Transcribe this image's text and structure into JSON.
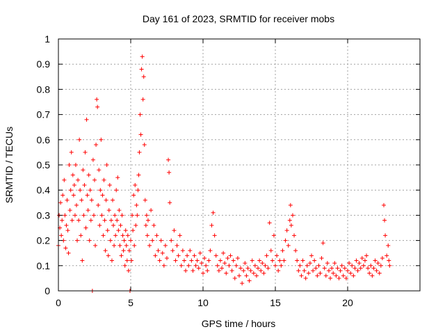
{
  "chart_data": {
    "type": "scatter",
    "title": "Day 161 of 2023, SRMTID for receiver mobs",
    "xlabel": "GPS time / hours",
    "ylabel": "SRMTID / TECUs",
    "xlim": [
      0,
      25
    ],
    "ylim": [
      0,
      1
    ],
    "xticks": [
      0,
      5,
      10,
      15,
      20
    ],
    "xtick_labels": [
      "0",
      "5",
      "10",
      "15",
      "20"
    ],
    "yticks": [
      0,
      0.1,
      0.2,
      0.3,
      0.4,
      0.5,
      0.6,
      0.7,
      0.8,
      0.9,
      1
    ],
    "ytick_labels": [
      "0",
      "0.1",
      "0.2",
      "0.3",
      "0.4",
      "0.5",
      "0.6",
      "0.7",
      "0.8",
      "0.9",
      "1"
    ],
    "grid": true,
    "marker": "+",
    "color": "#ff0000",
    "series": [
      {
        "name": "mobs",
        "points": [
          [
            0.0,
            0.18
          ],
          [
            0.05,
            0.3
          ],
          [
            0.1,
            0.25
          ],
          [
            0.15,
            0.35
          ],
          [
            0.2,
            0.22
          ],
          [
            0.25,
            0.28
          ],
          [
            0.3,
            0.38
          ],
          [
            0.35,
            0.2
          ],
          [
            0.4,
            0.44
          ],
          [
            0.45,
            0.3
          ],
          [
            0.5,
            0.17
          ],
          [
            0.55,
            0.26
          ],
          [
            0.6,
            0.36
          ],
          [
            0.65,
            0.24
          ],
          [
            0.7,
            0.15
          ],
          [
            0.75,
            0.5
          ],
          [
            0.8,
            0.32
          ],
          [
            0.85,
            0.4
          ],
          [
            0.9,
            0.55
          ],
          [
            0.95,
            0.28
          ],
          [
            1.0,
            0.46
          ],
          [
            1.05,
            0.38
          ],
          [
            1.1,
            0.42
          ],
          [
            1.15,
            0.3
          ],
          [
            1.2,
            0.5
          ],
          [
            1.25,
            0.34
          ],
          [
            1.3,
            0.2
          ],
          [
            1.35,
            0.44
          ],
          [
            1.4,
            0.28
          ],
          [
            1.45,
            0.6
          ],
          [
            1.5,
            0.4
          ],
          [
            1.55,
            0.22
          ],
          [
            1.6,
            0.36
          ],
          [
            1.65,
            0.12
          ],
          [
            1.7,
            0.48
          ],
          [
            1.75,
            0.3
          ],
          [
            1.8,
            0.42
          ],
          [
            1.85,
            0.55
          ],
          [
            1.9,
            0.25
          ],
          [
            1.95,
            0.68
          ],
          [
            2.0,
            0.38
          ],
          [
            2.05,
            0.32
          ],
          [
            2.1,
            0.46
          ],
          [
            2.15,
            0.2
          ],
          [
            2.2,
            0.4
          ],
          [
            2.25,
            0.28
          ],
          [
            2.3,
            0.36
          ],
          [
            2.35,
            0.0
          ],
          [
            2.4,
            0.52
          ],
          [
            2.45,
            0.3
          ],
          [
            2.5,
            0.44
          ],
          [
            2.55,
            0.18
          ],
          [
            2.6,
            0.58
          ],
          [
            2.65,
            0.76
          ],
          [
            2.7,
            0.73
          ],
          [
            2.75,
            0.34
          ],
          [
            2.8,
            0.48
          ],
          [
            2.85,
            0.26
          ],
          [
            2.9,
            0.4
          ],
          [
            2.95,
            0.6
          ],
          [
            3.0,
            0.3
          ],
          [
            3.05,
            0.38
          ],
          [
            3.1,
            0.22
          ],
          [
            3.15,
            0.44
          ],
          [
            3.2,
            0.28
          ],
          [
            3.25,
            0.16
          ],
          [
            3.3,
            0.36
          ],
          [
            3.35,
            0.5
          ],
          [
            3.4,
            0.24
          ],
          [
            3.45,
            0.14
          ],
          [
            3.5,
            0.32
          ],
          [
            3.55,
            0.42
          ],
          [
            3.6,
            0.2
          ],
          [
            3.65,
            0.28
          ],
          [
            3.7,
            0.12
          ],
          [
            3.75,
            0.36
          ],
          [
            3.8,
            0.26
          ],
          [
            3.85,
            0.18
          ],
          [
            3.9,
            0.3
          ],
          [
            3.95,
            0.22
          ],
          [
            4.0,
            0.4
          ],
          [
            4.05,
            0.28
          ],
          [
            4.1,
            0.45
          ],
          [
            4.15,
            0.24
          ],
          [
            4.2,
            0.32
          ],
          [
            4.25,
            0.18
          ],
          [
            4.3,
            0.26
          ],
          [
            4.35,
            0.14
          ],
          [
            4.4,
            0.3
          ],
          [
            4.45,
            0.22
          ],
          [
            4.5,
            0.16
          ],
          [
            4.55,
            0.2
          ],
          [
            4.6,
            0.1
          ],
          [
            4.65,
            0.24
          ],
          [
            4.7,
            0.18
          ],
          [
            4.75,
            0.12
          ],
          [
            4.8,
            0.22
          ],
          [
            4.85,
            0.08
          ],
          [
            4.9,
            0.16
          ],
          [
            4.95,
            0.0
          ],
          [
            5.0,
            0.2
          ],
          [
            5.05,
            0.12
          ],
          [
            5.1,
            0.3
          ],
          [
            5.15,
            0.24
          ],
          [
            5.2,
            0.38
          ],
          [
            5.25,
            0.18
          ],
          [
            5.3,
            0.42
          ],
          [
            5.35,
            0.26
          ],
          [
            5.4,
            0.34
          ],
          [
            5.45,
            0.3
          ],
          [
            5.5,
            0.4
          ],
          [
            5.55,
            0.46
          ],
          [
            5.6,
            0.55
          ],
          [
            5.65,
            0.7
          ],
          [
            5.7,
            0.62
          ],
          [
            5.75,
            0.88
          ],
          [
            5.8,
            0.93
          ],
          [
            5.85,
            0.76
          ],
          [
            5.9,
            0.85
          ],
          [
            5.95,
            0.58
          ],
          [
            6.0,
            0.36
          ],
          [
            6.05,
            0.26
          ],
          [
            6.1,
            0.3
          ],
          [
            6.15,
            0.22
          ],
          [
            6.2,
            0.28
          ],
          [
            6.3,
            0.18
          ],
          [
            6.4,
            0.32
          ],
          [
            6.5,
            0.2
          ],
          [
            6.6,
            0.26
          ],
          [
            6.7,
            0.14
          ],
          [
            6.8,
            0.22
          ],
          [
            6.9,
            0.16
          ],
          [
            7.0,
            0.12
          ],
          [
            7.1,
            0.2
          ],
          [
            7.2,
            0.15
          ],
          [
            7.3,
            0.1
          ],
          [
            7.4,
            0.18
          ],
          [
            7.5,
            0.13
          ],
          [
            7.6,
            0.52
          ],
          [
            7.65,
            0.47
          ],
          [
            7.7,
            0.35
          ],
          [
            7.8,
            0.2
          ],
          [
            7.9,
            0.16
          ],
          [
            8.0,
            0.24
          ],
          [
            8.1,
            0.12
          ],
          [
            8.2,
            0.18
          ],
          [
            8.3,
            0.14
          ],
          [
            8.4,
            0.22
          ],
          [
            8.5,
            0.1
          ],
          [
            8.6,
            0.16
          ],
          [
            8.7,
            0.12
          ],
          [
            8.8,
            0.08
          ],
          [
            8.9,
            0.14
          ],
          [
            9.0,
            0.1
          ],
          [
            9.1,
            0.16
          ],
          [
            9.2,
            0.12
          ],
          [
            9.3,
            0.08
          ],
          [
            9.4,
            0.14
          ],
          [
            9.5,
            0.1
          ],
          [
            9.6,
            0.12
          ],
          [
            9.7,
            0.09
          ],
          [
            9.8,
            0.15
          ],
          [
            9.9,
            0.11
          ],
          [
            10.0,
            0.07
          ],
          [
            10.1,
            0.13
          ],
          [
            10.2,
            0.1
          ],
          [
            10.3,
            0.08
          ],
          [
            10.4,
            0.12
          ],
          [
            10.5,
            0.16
          ],
          [
            10.6,
            0.26
          ],
          [
            10.7,
            0.31
          ],
          [
            10.8,
            0.22
          ],
          [
            10.9,
            0.14
          ],
          [
            11.0,
            0.1
          ],
          [
            11.1,
            0.08
          ],
          [
            11.2,
            0.12
          ],
          [
            11.3,
            0.09
          ],
          [
            11.4,
            0.15
          ],
          [
            11.5,
            0.11
          ],
          [
            11.6,
            0.07
          ],
          [
            11.7,
            0.13
          ],
          [
            11.8,
            0.1
          ],
          [
            11.9,
            0.14
          ],
          [
            12.0,
            0.08
          ],
          [
            12.1,
            0.12
          ],
          [
            12.2,
            0.05
          ],
          [
            12.3,
            0.1
          ],
          [
            12.4,
            0.13
          ],
          [
            12.5,
            0.06
          ],
          [
            12.6,
            0.09
          ],
          [
            12.7,
            0.03
          ],
          [
            12.8,
            0.08
          ],
          [
            12.9,
            0.11
          ],
          [
            13.0,
            0.06
          ],
          [
            13.1,
            0.09
          ],
          [
            13.2,
            0.04
          ],
          [
            13.3,
            0.08
          ],
          [
            13.4,
            0.12
          ],
          [
            13.5,
            0.07
          ],
          [
            13.6,
            0.1
          ],
          [
            13.7,
            0.06
          ],
          [
            13.8,
            0.09
          ],
          [
            13.9,
            0.12
          ],
          [
            14.0,
            0.08
          ],
          [
            14.1,
            0.11
          ],
          [
            14.2,
            0.07
          ],
          [
            14.3,
            0.1
          ],
          [
            14.4,
            0.14
          ],
          [
            14.5,
            0.09
          ],
          [
            14.6,
            0.27
          ],
          [
            14.7,
            0.16
          ],
          [
            14.8,
            0.12
          ],
          [
            14.9,
            0.22
          ],
          [
            15.0,
            0.1
          ],
          [
            15.1,
            0.14
          ],
          [
            15.2,
            0.08
          ],
          [
            15.3,
            0.12
          ],
          [
            15.4,
            0.1
          ],
          [
            15.5,
            0.16
          ],
          [
            15.6,
            0.12
          ],
          [
            15.7,
            0.2
          ],
          [
            15.8,
            0.24
          ],
          [
            15.9,
            0.18
          ],
          [
            16.0,
            0.28
          ],
          [
            16.05,
            0.34
          ],
          [
            16.1,
            0.26
          ],
          [
            16.2,
            0.3
          ],
          [
            16.3,
            0.22
          ],
          [
            16.4,
            0.16
          ],
          [
            16.5,
            0.12
          ],
          [
            16.6,
            0.08
          ],
          [
            16.7,
            0.1
          ],
          [
            16.8,
            0.06
          ],
          [
            16.9,
            0.12
          ],
          [
            17.0,
            0.08
          ],
          [
            17.1,
            0.05
          ],
          [
            17.2,
            0.1
          ],
          [
            17.3,
            0.07
          ],
          [
            17.4,
            0.11
          ],
          [
            17.5,
            0.14
          ],
          [
            17.6,
            0.08
          ],
          [
            17.7,
            0.12
          ],
          [
            17.8,
            0.09
          ],
          [
            17.9,
            0.06
          ],
          [
            18.0,
            0.1
          ],
          [
            18.1,
            0.07
          ],
          [
            18.2,
            0.13
          ],
          [
            18.3,
            0.19
          ],
          [
            18.4,
            0.09
          ],
          [
            18.5,
            0.06
          ],
          [
            18.6,
            0.11
          ],
          [
            18.7,
            0.08
          ],
          [
            18.8,
            0.05
          ],
          [
            18.9,
            0.09
          ],
          [
            19.0,
            0.07
          ],
          [
            19.1,
            0.11
          ],
          [
            19.2,
            0.06
          ],
          [
            19.3,
            0.09
          ],
          [
            19.4,
            0.05
          ],
          [
            19.5,
            0.08
          ],
          [
            19.6,
            0.1
          ],
          [
            19.7,
            0.06
          ],
          [
            19.8,
            0.09
          ],
          [
            19.9,
            0.05
          ],
          [
            20.0,
            0.08
          ],
          [
            20.1,
            0.11
          ],
          [
            20.2,
            0.07
          ],
          [
            20.3,
            0.1
          ],
          [
            20.4,
            0.06
          ],
          [
            20.5,
            0.09
          ],
          [
            20.6,
            0.12
          ],
          [
            20.7,
            0.08
          ],
          [
            20.8,
            0.11
          ],
          [
            20.9,
            0.09
          ],
          [
            21.0,
            0.13
          ],
          [
            21.1,
            0.1
          ],
          [
            21.2,
            0.12
          ],
          [
            21.3,
            0.14
          ],
          [
            21.4,
            0.09
          ],
          [
            21.5,
            0.07
          ],
          [
            21.6,
            0.1
          ],
          [
            21.7,
            0.06
          ],
          [
            21.8,
            0.09
          ],
          [
            21.9,
            0.12
          ],
          [
            22.0,
            0.08
          ],
          [
            22.1,
            0.11
          ],
          [
            22.2,
            0.07
          ],
          [
            22.3,
            0.1
          ],
          [
            22.4,
            0.13
          ],
          [
            22.5,
            0.34
          ],
          [
            22.55,
            0.28
          ],
          [
            22.6,
            0.22
          ],
          [
            22.7,
            0.14
          ],
          [
            22.8,
            0.18
          ],
          [
            22.85,
            0.12
          ],
          [
            22.9,
            0.1
          ]
        ]
      }
    ]
  }
}
